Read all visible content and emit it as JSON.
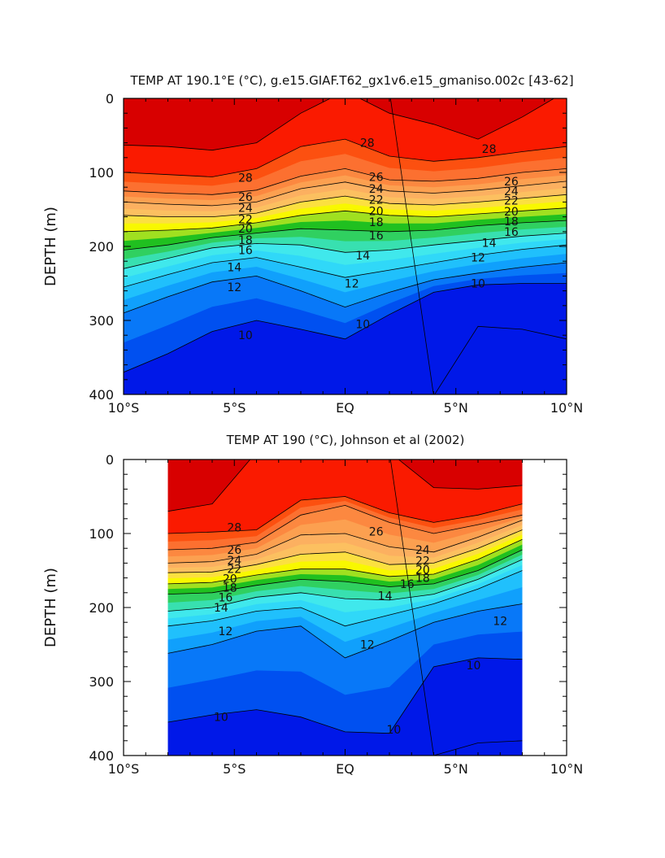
{
  "palette": {
    "levels": [
      8,
      10,
      11,
      12,
      13,
      14,
      15,
      16,
      17,
      18,
      19,
      20,
      21,
      22,
      23,
      24,
      25,
      26,
      27,
      28,
      29
    ],
    "colors": [
      "#0018e8",
      "#0050f0",
      "#0878f8",
      "#10a0fc",
      "#20c0fc",
      "#30d8f8",
      "#40e8ec",
      "#38e0b0",
      "#30d060",
      "#20c020",
      "#a0e020",
      "#f8f800",
      "#fce040",
      "#fcc060",
      "#fcb060",
      "#fca050",
      "#fc8840",
      "#fc7030",
      "#fc5010",
      "#fa1a00",
      "#d80000"
    ]
  },
  "chart_data": [
    {
      "type": "contour",
      "title": "TEMP AT 190.1°E (°C), g.e15.GIAF.T62_gx1v6.e15_gmaniso.002c [43-62]",
      "ylabel": "DEPTH (m)",
      "xlabel": "",
      "xlim": [
        -10,
        10
      ],
      "ylim": [
        400,
        0
      ],
      "xticks": [
        {
          "value": -10,
          "label": "10°S"
        },
        {
          "value": -5,
          "label": "5°S"
        },
        {
          "value": 0,
          "label": "EQ"
        },
        {
          "value": 5,
          "label": "5°N"
        },
        {
          "value": 10,
          "label": "10°N"
        }
      ],
      "yticks": [
        {
          "value": 0,
          "label": "0"
        },
        {
          "value": 100,
          "label": "100"
        },
        {
          "value": 200,
          "label": "200"
        },
        {
          "value": 300,
          "label": "300"
        },
        {
          "value": 400,
          "label": "400"
        }
      ],
      "lat": [
        -10,
        -8,
        -6,
        -4,
        -2,
        0,
        2,
        4,
        6,
        8,
        10
      ],
      "isotherm_depths": {
        "29": [
          63,
          65,
          70,
          60,
          20,
          -1,
          20,
          35,
          55,
          25,
          -1
        ],
        "28": [
          100,
          103,
          106,
          95,
          65,
          55,
          78,
          85,
          80,
          72,
          65
        ],
        "26": [
          125,
          128,
          130,
          124,
          105,
          95,
          110,
          112,
          108,
          100,
          95
        ],
        "24": [
          140,
          143,
          145,
          140,
          122,
          113,
          125,
          128,
          124,
          118,
          112
        ],
        "22": [
          158,
          160,
          160,
          155,
          140,
          132,
          142,
          144,
          140,
          135,
          130
        ],
        "20": [
          180,
          178,
          175,
          168,
          158,
          152,
          158,
          160,
          156,
          152,
          148
        ],
        "18": [
          205,
          198,
          188,
          182,
          176,
          178,
          180,
          178,
          172,
          168,
          165
        ],
        "16": [
          230,
          216,
          202,
          196,
          198,
          208,
          205,
          198,
          192,
          186,
          182
        ],
        "14": [
          255,
          238,
          222,
          215,
          228,
          242,
          232,
          222,
          212,
          204,
          198
        ],
        "12": [
          290,
          268,
          248,
          240,
          260,
          282,
          262,
          245,
          236,
          228,
          222
        ],
        "10": [
          370,
          345,
          315,
          300,
          312,
          325,
          292,
          262,
          252,
          250,
          250
        ],
        "8": [
          -1,
          -1,
          -1,
          -1,
          -1,
          -1,
          -1,
          402,
          308,
          312,
          325
        ]
      },
      "contour_labels": [
        {
          "value": "28",
          "lat": -4.5,
          "depth": 107
        },
        {
          "value": "28",
          "lat": 1.0,
          "depth": 60
        },
        {
          "value": "28",
          "lat": 6.5,
          "depth": 68
        },
        {
          "value": "26",
          "lat": -4.5,
          "depth": 133
        },
        {
          "value": "26",
          "lat": 1.4,
          "depth": 106
        },
        {
          "value": "26",
          "lat": 7.5,
          "depth": 112
        },
        {
          "value": "24",
          "lat": -4.5,
          "depth": 148
        },
        {
          "value": "24",
          "lat": 1.4,
          "depth": 122
        },
        {
          "value": "24",
          "lat": 7.5,
          "depth": 125
        },
        {
          "value": "22",
          "lat": -4.5,
          "depth": 163
        },
        {
          "value": "22",
          "lat": 1.4,
          "depth": 137
        },
        {
          "value": "22",
          "lat": 7.5,
          "depth": 138
        },
        {
          "value": "20",
          "lat": -4.5,
          "depth": 176
        },
        {
          "value": "20",
          "lat": 1.4,
          "depth": 152
        },
        {
          "value": "20",
          "lat": 7.5,
          "depth": 153
        },
        {
          "value": "18",
          "lat": -4.5,
          "depth": 191
        },
        {
          "value": "18",
          "lat": 1.4,
          "depth": 167
        },
        {
          "value": "18",
          "lat": 7.5,
          "depth": 166
        },
        {
          "value": "16",
          "lat": -4.5,
          "depth": 205
        },
        {
          "value": "16",
          "lat": 1.4,
          "depth": 185
        },
        {
          "value": "16",
          "lat": 7.5,
          "depth": 180
        },
        {
          "value": "14",
          "lat": -5.0,
          "depth": 228
        },
        {
          "value": "14",
          "lat": 0.8,
          "depth": 212
        },
        {
          "value": "14",
          "lat": 6.5,
          "depth": 195
        },
        {
          "value": "12",
          "lat": -5.0,
          "depth": 255
        },
        {
          "value": "12",
          "lat": 0.3,
          "depth": 250
        },
        {
          "value": "12",
          "lat": 6.0,
          "depth": 215
        },
        {
          "value": "10",
          "lat": -4.5,
          "depth": 320
        },
        {
          "value": "10",
          "lat": 0.8,
          "depth": 305
        },
        {
          "value": "10",
          "lat": 6.0,
          "depth": 250
        }
      ]
    },
    {
      "type": "contour",
      "title": "TEMP AT 190 (°C), Johnson et al (2002)",
      "ylabel": "DEPTH (m)",
      "xlabel": "",
      "xlim": [
        -10,
        10
      ],
      "ylim": [
        400,
        0
      ],
      "data_lat_range": [
        -8,
        8
      ],
      "xticks": [
        {
          "value": -10,
          "label": "10°S"
        },
        {
          "value": -5,
          "label": "5°S"
        },
        {
          "value": 0,
          "label": "EQ"
        },
        {
          "value": 5,
          "label": "5°N"
        },
        {
          "value": 10,
          "label": "10°N"
        }
      ],
      "yticks": [
        {
          "value": 0,
          "label": "0"
        },
        {
          "value": 100,
          "label": "100"
        },
        {
          "value": 200,
          "label": "200"
        },
        {
          "value": 300,
          "label": "300"
        },
        {
          "value": 400,
          "label": "400"
        }
      ],
      "lat": [
        -8,
        -6,
        -4,
        -2,
        0,
        2,
        4,
        6,
        8
      ],
      "isotherm_depths": {
        "29": [
          70,
          60,
          -1,
          -1,
          -1,
          -1,
          38,
          40,
          35
        ],
        "28": [
          100,
          98,
          95,
          55,
          50,
          72,
          85,
          75,
          60
        ],
        "26": [
          122,
          120,
          112,
          75,
          62,
          85,
          100,
          88,
          75
        ],
        "24": [
          140,
          138,
          128,
          102,
          100,
          118,
          125,
          105,
          82
        ],
        "22": [
          153,
          152,
          142,
          128,
          125,
          142,
          140,
          120,
          95
        ],
        "20": [
          168,
          166,
          156,
          148,
          148,
          158,
          155,
          135,
          108
        ],
        "18": [
          182,
          180,
          170,
          162,
          165,
          172,
          168,
          150,
          122
        ],
        "16": [
          205,
          200,
          186,
          180,
          188,
          190,
          182,
          162,
          135
        ],
        "14": [
          225,
          218,
          205,
          200,
          225,
          210,
          195,
          175,
          150
        ],
        "12": [
          262,
          250,
          232,
          225,
          268,
          245,
          220,
          205,
          195
        ],
        "10": [
          355,
          345,
          338,
          348,
          368,
          370,
          280,
          268,
          270
        ],
        "8": [
          -1,
          -1,
          -1,
          -1,
          -1,
          -1,
          400,
          383,
          380
        ]
      },
      "contour_labels": [
        {
          "value": "28",
          "lat": -5.0,
          "depth": 92
        },
        {
          "value": "26",
          "lat": -5.0,
          "depth": 122
        },
        {
          "value": "26",
          "lat": 1.4,
          "depth": 97
        },
        {
          "value": "24",
          "lat": -5.0,
          "depth": 136
        },
        {
          "value": "24",
          "lat": 3.5,
          "depth": 122
        },
        {
          "value": "22",
          "lat": -5.0,
          "depth": 148
        },
        {
          "value": "22",
          "lat": 3.5,
          "depth": 137
        },
        {
          "value": "20",
          "lat": -5.2,
          "depth": 161
        },
        {
          "value": "20",
          "lat": 3.5,
          "depth": 149
        },
        {
          "value": "18",
          "lat": -5.2,
          "depth": 173
        },
        {
          "value": "18",
          "lat": 3.5,
          "depth": 160
        },
        {
          "value": "16",
          "lat": -5.4,
          "depth": 186
        },
        {
          "value": "16",
          "lat": 2.8,
          "depth": 168
        },
        {
          "value": "14",
          "lat": -5.6,
          "depth": 200
        },
        {
          "value": "14",
          "lat": 1.8,
          "depth": 184
        },
        {
          "value": "12",
          "lat": -5.4,
          "depth": 232
        },
        {
          "value": "12",
          "lat": 1.0,
          "depth": 250
        },
        {
          "value": "12",
          "lat": 7.0,
          "depth": 218
        },
        {
          "value": "10",
          "lat": -5.6,
          "depth": 348
        },
        {
          "value": "10",
          "lat": 2.2,
          "depth": 365
        },
        {
          "value": "10",
          "lat": 5.8,
          "depth": 278
        }
      ]
    }
  ]
}
